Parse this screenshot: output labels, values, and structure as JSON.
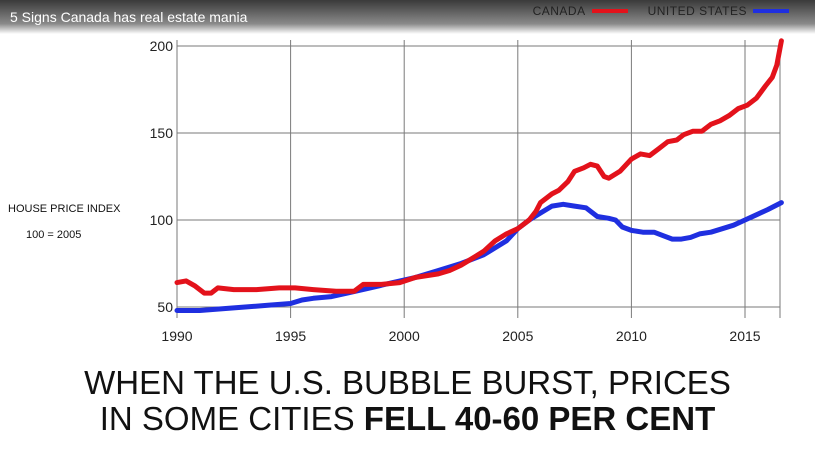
{
  "video": {
    "title": "5 Signs Canada has real estate mania"
  },
  "legend": [
    {
      "label": "CANADA",
      "color": "#e3121b"
    },
    {
      "label": "UNITED STATES",
      "color": "#1f2fe0"
    }
  ],
  "axis_note": {
    "line1": "HOUSE PRICE INDEX",
    "line2": "100 = 2005"
  },
  "headline": {
    "line1": "WHEN THE U.S. BUBBLE BURST, PRICES",
    "line2_regular": "IN SOME CITIES ",
    "line2_bold": "FELL 40-60 PER CENT"
  },
  "chart_data": {
    "type": "line",
    "xlim": [
      1990,
      2016.7
    ],
    "ylim": [
      47,
      205
    ],
    "x_ticks": [
      1990,
      1995,
      2000,
      2005,
      2010,
      2015
    ],
    "y_ticks": [
      50,
      100,
      150,
      200
    ],
    "grid": true,
    "legend_position": "top-right",
    "series": [
      {
        "name": "CANADA",
        "color": "#e3121b",
        "points": [
          [
            1990.0,
            64
          ],
          [
            1990.4,
            65
          ],
          [
            1990.8,
            62
          ],
          [
            1991.2,
            58
          ],
          [
            1991.5,
            58
          ],
          [
            1991.8,
            61
          ],
          [
            1992.5,
            60
          ],
          [
            1993.5,
            60
          ],
          [
            1994.5,
            61
          ],
          [
            1995.2,
            61
          ],
          [
            1996.0,
            60
          ],
          [
            1997.0,
            59
          ],
          [
            1997.8,
            59
          ],
          [
            1998.2,
            63
          ],
          [
            1999.0,
            63
          ],
          [
            1999.8,
            64
          ],
          [
            2000.5,
            67
          ],
          [
            2001.5,
            69
          ],
          [
            2002.0,
            71
          ],
          [
            2002.5,
            74
          ],
          [
            2003.0,
            78
          ],
          [
            2003.5,
            82
          ],
          [
            2004.0,
            88
          ],
          [
            2004.5,
            92
          ],
          [
            2005.0,
            95
          ],
          [
            2005.5,
            100
          ],
          [
            2005.8,
            105
          ],
          [
            2006.0,
            110
          ],
          [
            2006.5,
            115
          ],
          [
            2006.8,
            117
          ],
          [
            2007.2,
            122
          ],
          [
            2007.5,
            128
          ],
          [
            2007.9,
            130
          ],
          [
            2008.2,
            132
          ],
          [
            2008.5,
            131
          ],
          [
            2008.8,
            125
          ],
          [
            2009.0,
            124
          ],
          [
            2009.5,
            128
          ],
          [
            2010.0,
            135
          ],
          [
            2010.4,
            138
          ],
          [
            2010.8,
            137
          ],
          [
            2011.2,
            141
          ],
          [
            2011.6,
            145
          ],
          [
            2012.0,
            146
          ],
          [
            2012.3,
            149
          ],
          [
            2012.7,
            151
          ],
          [
            2013.1,
            151
          ],
          [
            2013.5,
            155
          ],
          [
            2013.9,
            157
          ],
          [
            2014.3,
            160
          ],
          [
            2014.7,
            164
          ],
          [
            2015.1,
            166
          ],
          [
            2015.5,
            170
          ],
          [
            2015.9,
            177
          ],
          [
            2016.2,
            182
          ],
          [
            2016.4,
            189
          ],
          [
            2016.6,
            203
          ]
        ]
      },
      {
        "name": "UNITED STATES",
        "color": "#1f2fe0",
        "points": [
          [
            1990.0,
            48
          ],
          [
            1991.0,
            48
          ],
          [
            1992.0,
            49
          ],
          [
            1993.0,
            50
          ],
          [
            1994.0,
            51
          ],
          [
            1995.0,
            52
          ],
          [
            1995.5,
            54
          ],
          [
            1996.0,
            55
          ],
          [
            1996.8,
            56
          ],
          [
            1997.5,
            58
          ],
          [
            1998.5,
            61
          ],
          [
            1999.5,
            64
          ],
          [
            2000.5,
            67
          ],
          [
            2001.5,
            71
          ],
          [
            2002.5,
            75
          ],
          [
            2003.5,
            80
          ],
          [
            2004.5,
            88
          ],
          [
            2005.0,
            95
          ],
          [
            2005.5,
            100
          ],
          [
            2006.0,
            104
          ],
          [
            2006.5,
            108
          ],
          [
            2007.0,
            109
          ],
          [
            2007.5,
            108
          ],
          [
            2008.0,
            107
          ],
          [
            2008.5,
            102
          ],
          [
            2009.0,
            101
          ],
          [
            2009.3,
            100
          ],
          [
            2009.6,
            96
          ],
          [
            2010.0,
            94
          ],
          [
            2010.5,
            93
          ],
          [
            2011.0,
            93
          ],
          [
            2011.4,
            91
          ],
          [
            2011.8,
            89
          ],
          [
            2012.2,
            89
          ],
          [
            2012.6,
            90
          ],
          [
            2013.0,
            92
          ],
          [
            2013.5,
            93
          ],
          [
            2014.0,
            95
          ],
          [
            2014.5,
            97
          ],
          [
            2015.0,
            100
          ],
          [
            2015.5,
            103
          ],
          [
            2016.0,
            106
          ],
          [
            2016.6,
            110
          ]
        ]
      }
    ]
  }
}
